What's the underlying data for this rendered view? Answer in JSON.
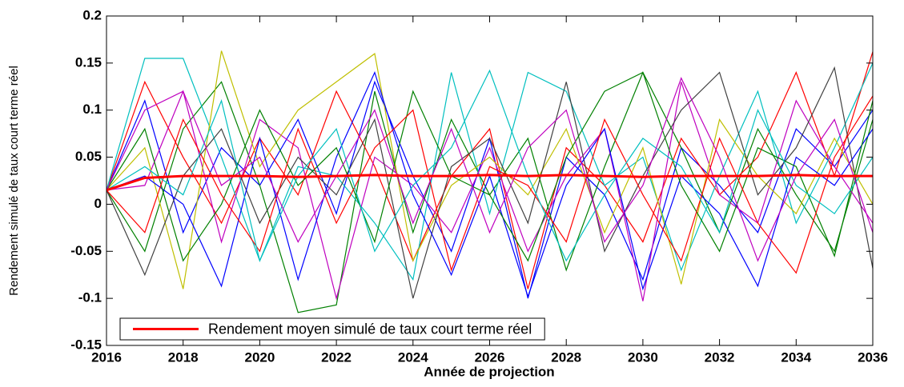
{
  "chart_data": {
    "type": "line",
    "ylabel": "Rendement simulé de taux court terme réel",
    "xlabel": "Année de projection",
    "x": [
      2016,
      2017,
      2018,
      2019,
      2020,
      2021,
      2022,
      2023,
      2024,
      2025,
      2026,
      2027,
      2028,
      2029,
      2030,
      2031,
      2032,
      2033,
      2034,
      2035,
      2036
    ],
    "xlim": [
      2016,
      2036
    ],
    "xticks": [
      2016,
      2018,
      2020,
      2022,
      2024,
      2026,
      2028,
      2030,
      2032,
      2034,
      2036
    ],
    "ylim": [
      -0.15,
      0.2
    ],
    "yticks": [
      -0.15,
      -0.1,
      -0.05,
      0,
      0.05,
      0.1,
      0.15,
      0.2
    ],
    "legend": "lower left",
    "series": [
      {
        "color": "#0000ff",
        "values": [
          0.015,
          0.11,
          -0.03,
          0.06,
          0.02,
          0.09,
          -0.01,
          0.13,
          0.03,
          -0.05,
          0.07,
          -0.1,
          0.05,
          0.01,
          -0.08,
          0.06,
          0.02,
          -0.03,
          0.08,
          0.04,
          0.1
        ]
      },
      {
        "color": "#008000",
        "values": [
          0.015,
          -0.05,
          0.08,
          0.13,
          0.02,
          -0.115,
          -0.107,
          0.12,
          -0.03,
          0.09,
          0.01,
          0.07,
          -0.07,
          0.04,
          0.14,
          0.06,
          -0.03,
          0.08,
          0.01,
          -0.05,
          0.09
        ]
      },
      {
        "color": "#ff0000",
        "values": [
          0.015,
          0.13,
          0.05,
          -0.02,
          0.07,
          0.01,
          0.12,
          0.04,
          -0.06,
          0.03,
          0.08,
          -0.09,
          0.06,
          0.02,
          -0.04,
          0.07,
          0.01,
          0.05,
          0.14,
          0.03,
          0.162
        ]
      },
      {
        "color": "#00bfbf",
        "values": [
          0.015,
          0.155,
          0.155,
          0.05,
          -0.06,
          0.04,
          0.03,
          -0.02,
          -0.08,
          0.14,
          -0.01,
          0.14,
          0.12,
          0.02,
          0.05,
          -0.07,
          0.03,
          0.12,
          -0.02,
          0.06,
          0.15
        ]
      },
      {
        "color": "#bf00bf",
        "values": [
          0.015,
          0.02,
          0.12,
          -0.04,
          0.09,
          0.06,
          -0.1,
          0.05,
          0.02,
          -0.03,
          0.06,
          -0.05,
          0.03,
          0.08,
          -0.103,
          0.13,
          0.01,
          -0.02,
          0.11,
          0.04,
          -0.02
        ]
      },
      {
        "color": "#bfbf00",
        "values": [
          0.015,
          0.06,
          -0.09,
          0.163,
          0.04,
          0.1,
          0.13,
          0.16,
          -0.06,
          0.02,
          0.05,
          0.01,
          0.08,
          -0.03,
          0.06,
          -0.085,
          0.09,
          0.03,
          -0.01,
          0.07,
          0.0
        ]
      },
      {
        "color": "#404040",
        "values": [
          0.015,
          -0.075,
          0.03,
          0.08,
          -0.02,
          0.05,
          0.01,
          0.09,
          -0.1,
          0.04,
          0.07,
          -0.02,
          0.13,
          -0.05,
          0.03,
          0.1,
          0.14,
          0.01,
          0.06,
          0.145,
          -0.068
        ]
      },
      {
        "color": "#0000ff",
        "values": [
          0.015,
          0.03,
          0.0,
          -0.087,
          0.07,
          -0.08,
          0.05,
          0.14,
          0.01,
          -0.075,
          0.03,
          -0.098,
          0.02,
          0.08,
          -0.09,
          0.03,
          -0.01,
          -0.087,
          0.05,
          0.02,
          0.08
        ]
      },
      {
        "color": "#008000",
        "values": [
          0.015,
          0.08,
          -0.06,
          0.0,
          0.1,
          0.02,
          0.06,
          -0.04,
          0.12,
          0.03,
          0.01,
          -0.06,
          0.05,
          0.12,
          0.14,
          0.02,
          -0.05,
          0.06,
          0.04,
          -0.055,
          0.11
        ]
      },
      {
        "color": "#ff0000",
        "values": [
          0.015,
          -0.03,
          0.09,
          0.01,
          -0.05,
          0.08,
          -0.02,
          0.06,
          0.1,
          -0.07,
          0.04,
          0.02,
          -0.04,
          0.09,
          0.01,
          -0.06,
          0.07,
          -0.02,
          -0.073,
          0.05,
          0.115
        ]
      },
      {
        "color": "#00bfbf",
        "values": [
          0.015,
          0.04,
          0.01,
          0.11,
          -0.06,
          0.03,
          0.08,
          -0.05,
          0.02,
          0.06,
          0.142,
          0.03,
          -0.06,
          0.01,
          0.07,
          0.04,
          -0.03,
          0.1,
          0.02,
          -0.01,
          0.05
        ]
      },
      {
        "color": "#bf00bf",
        "values": [
          0.015,
          0.1,
          0.12,
          0.02,
          0.05,
          -0.04,
          0.03,
          0.1,
          -0.02,
          0.08,
          -0.03,
          0.06,
          0.1,
          -0.04,
          0.02,
          0.134,
          0.05,
          -0.06,
          0.03,
          0.09,
          -0.03
        ]
      },
      {
        "name": "Rendement moyen simulé de taux court terme réel",
        "color": "#ff0000",
        "values": [
          0.015,
          0.028,
          0.03,
          0.03,
          0.03,
          0.029,
          0.03,
          0.031,
          0.03,
          0.03,
          0.031,
          0.03,
          0.031,
          0.03,
          0.029,
          0.03,
          0.03,
          0.03,
          0.031,
          0.03,
          0.03
        ]
      }
    ]
  }
}
